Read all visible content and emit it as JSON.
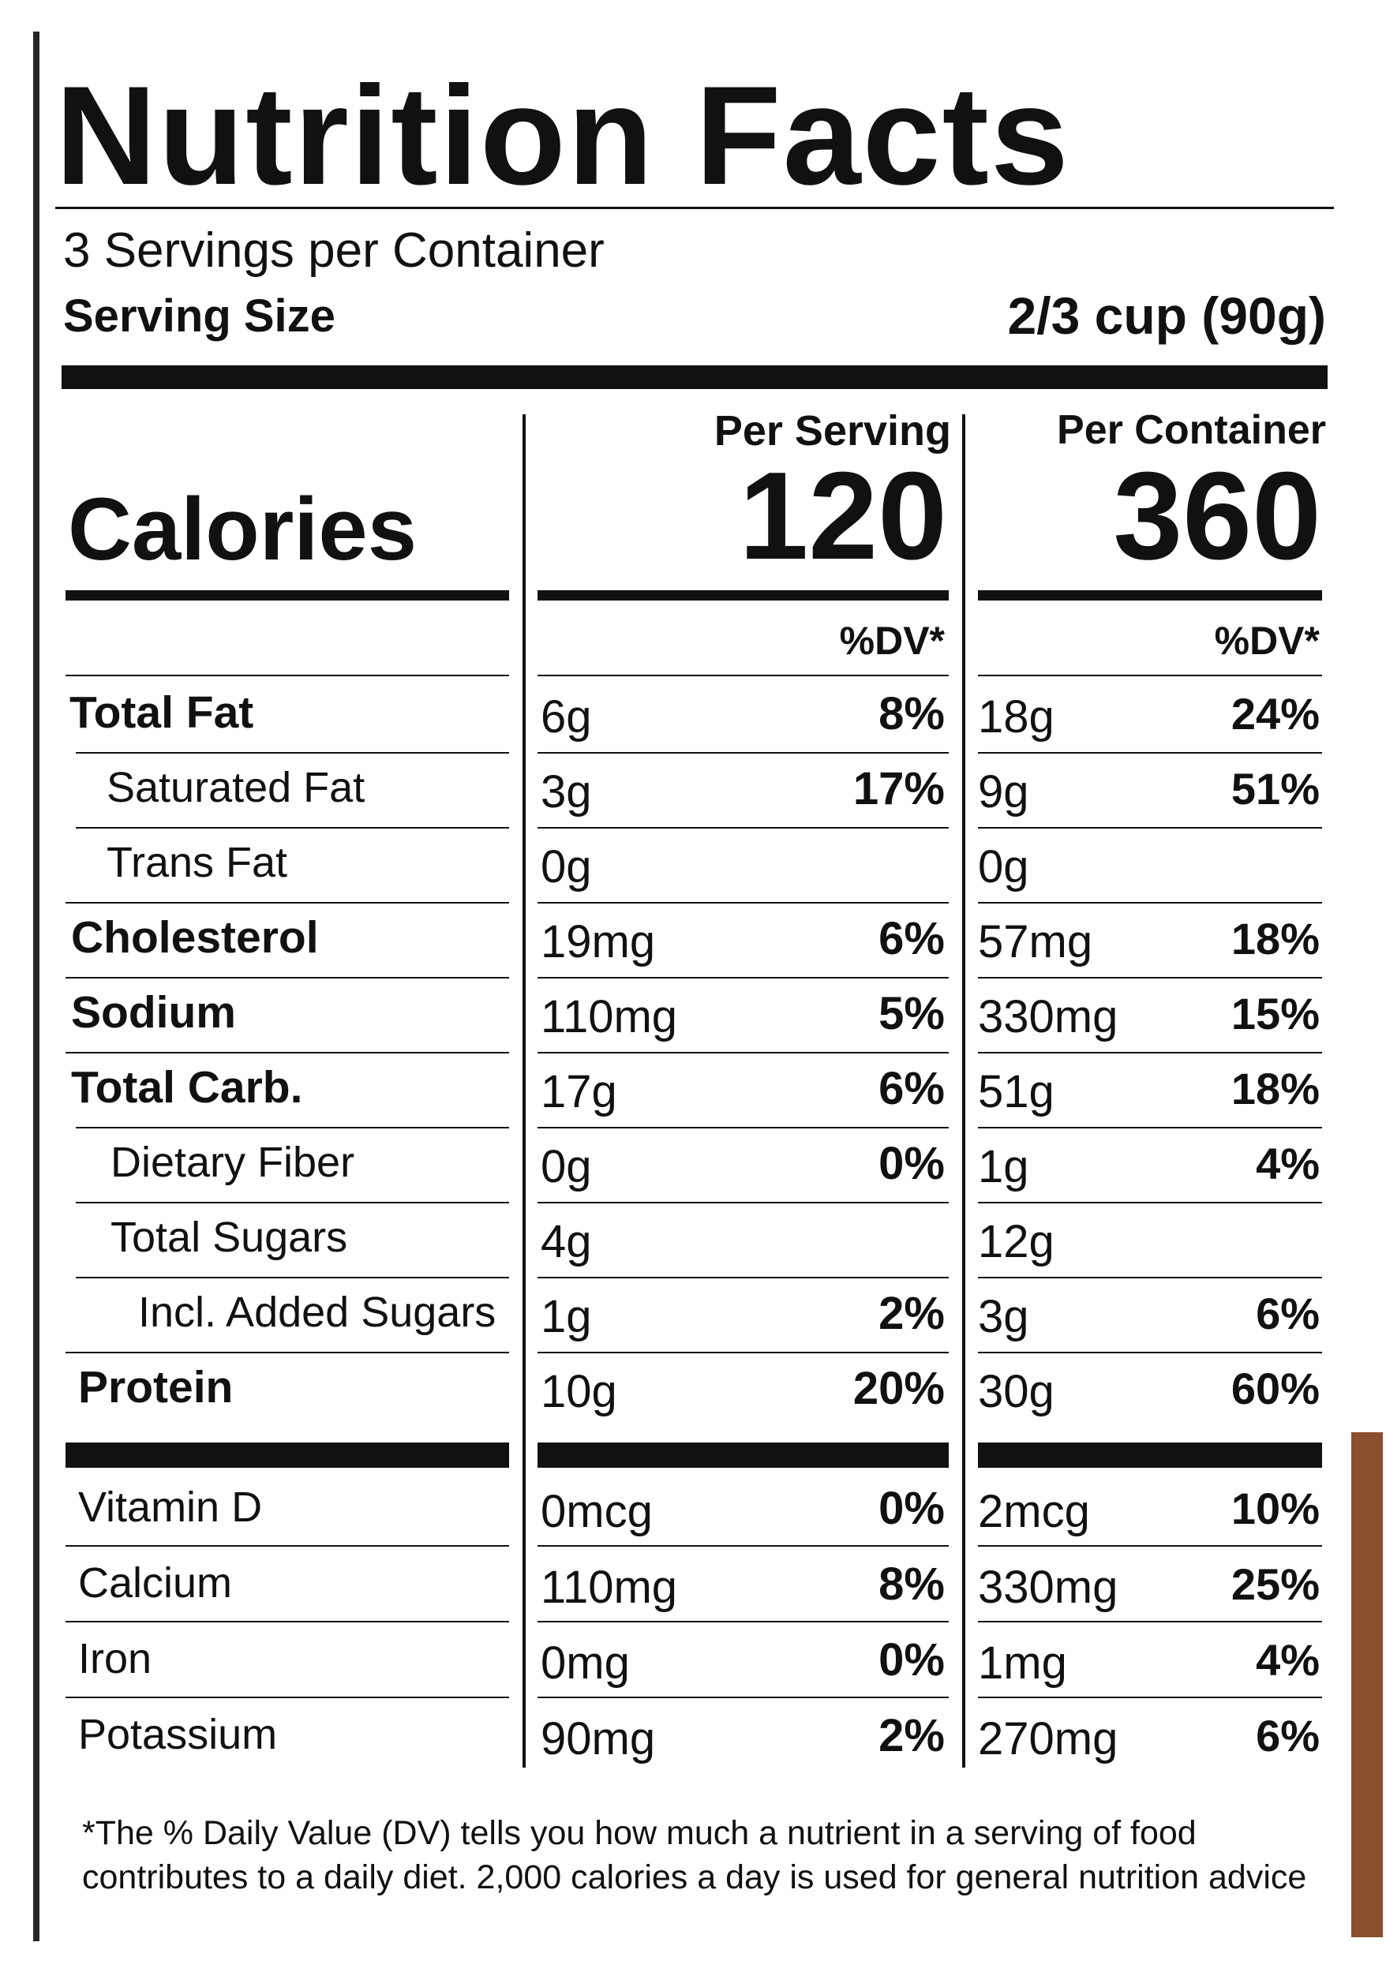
{
  "header": {
    "title": "Nutrition Facts",
    "servings": "3 Servings per Container",
    "serving_size_label": "Serving Size",
    "serving_size": "2/3 cup (90g)"
  },
  "columns": {
    "per_serving": "Per Serving",
    "per_container": "Per Container"
  },
  "calories": {
    "label": "Calories",
    "per_serving": "120",
    "per_container": "360"
  },
  "dv_header": {
    "per_serving": "%DV*",
    "per_container": "%DV*"
  },
  "nutrients": [
    {
      "label": "Total Fat",
      "serving_amount": "6g",
      "serving_dv": "8%",
      "container_amount": "18g",
      "container_dv": "24%"
    },
    {
      "label": "Saturated Fat",
      "serving_amount": "3g",
      "serving_dv": "17%",
      "container_amount": "9g",
      "container_dv": "51%"
    },
    {
      "label": "Trans Fat",
      "serving_amount": "0g",
      "container_amount": "0g"
    },
    {
      "label": "Cholesterol",
      "serving_amount": "19mg",
      "serving_dv": "6%",
      "container_amount": "57mg",
      "container_dv": "18%"
    },
    {
      "label": "Sodium",
      "serving_amount": "110mg",
      "serving_dv": "5%",
      "container_amount": "330mg",
      "container_dv": "15%"
    },
    {
      "label": "Total Carb.",
      "serving_amount": "17g",
      "serving_dv": "6%",
      "container_amount": "51g",
      "container_dv": "18%"
    },
    {
      "label": "Dietary Fiber",
      "serving_amount": "0g",
      "serving_dv": "0%",
      "container_amount": "1g",
      "container_dv": "4%"
    },
    {
      "label": "Total Sugars",
      "serving_amount": "4g",
      "container_amount": "12g"
    },
    {
      "label": "Incl. Added Sugars",
      "serving_amount": "1g",
      "serving_dv": "2%",
      "container_amount": "3g",
      "container_dv": "6%"
    },
    {
      "label": "Protein",
      "serving_amount": "10g",
      "serving_dv": "20%",
      "container_amount": "30g",
      "container_dv": "60%"
    }
  ],
  "vitamins": [
    {
      "label": "Vitamin D",
      "serving_amount": "0mcg",
      "serving_dv": "0%",
      "container_amount": "2mcg",
      "container_dv": "10%"
    },
    {
      "label": "Calcium",
      "serving_amount": "110mg",
      "serving_dv": "8%",
      "container_amount": "330mg",
      "container_dv": "25%"
    },
    {
      "label": "Iron",
      "serving_amount": "0mg",
      "serving_dv": "0%",
      "container_amount": "1mg",
      "container_dv": "4%"
    },
    {
      "label": "Potassium",
      "serving_amount": "90mg",
      "serving_dv": "2%",
      "container_amount": "270mg",
      "container_dv": "6%"
    }
  ],
  "footnote": [
    "*The % Daily Value (DV) tells you how much a nutrient in a serving of food",
    "contributes to a daily diet. 2,000 calories a day is used for general nutrition advice"
  ]
}
